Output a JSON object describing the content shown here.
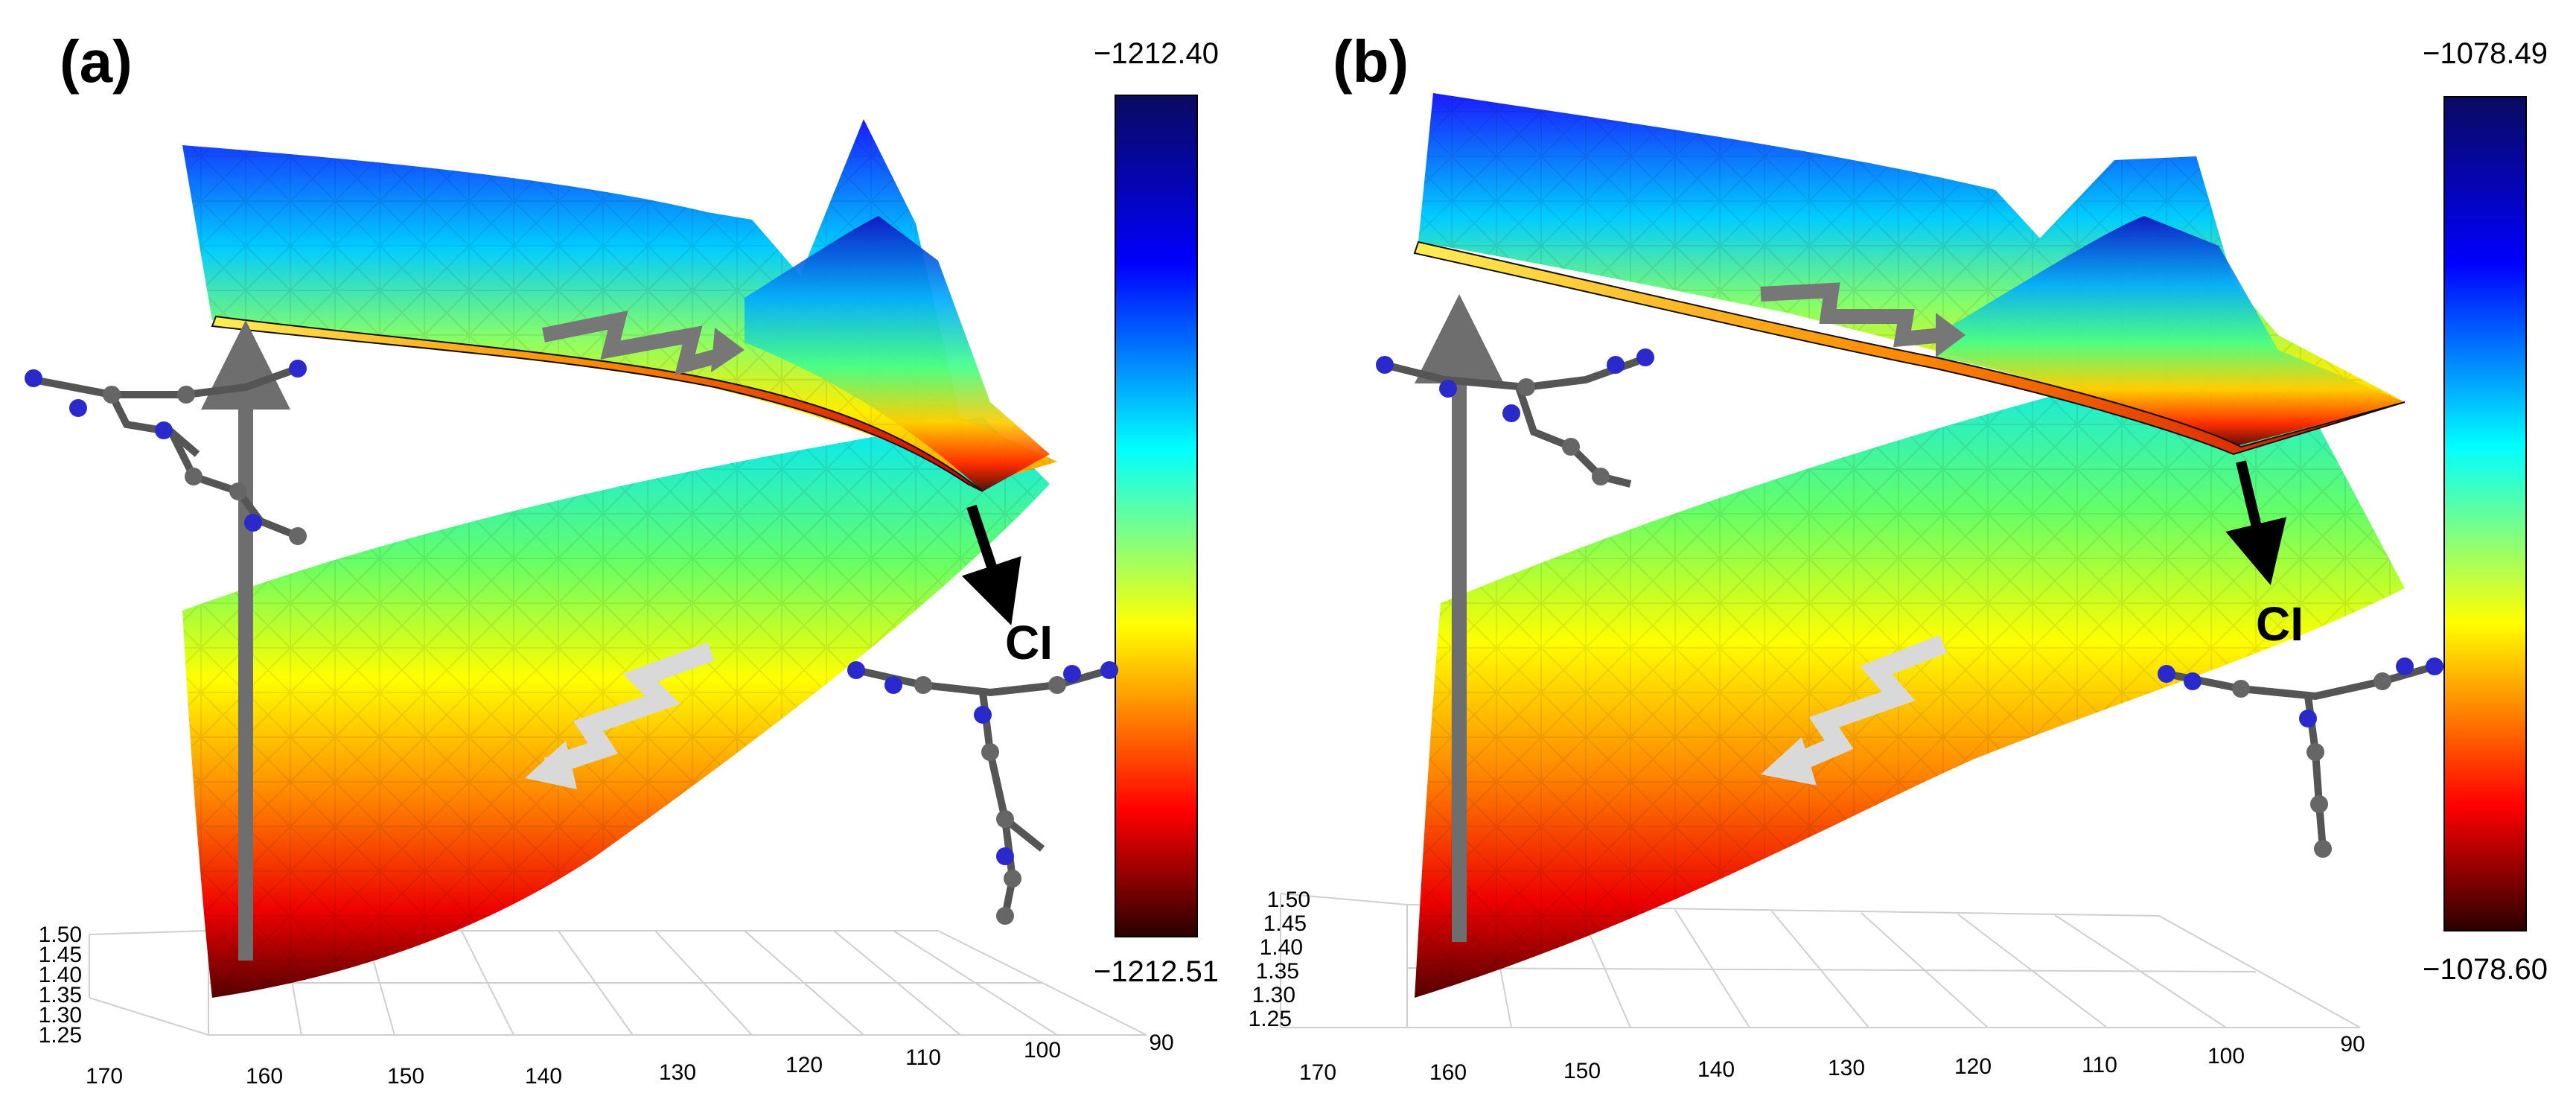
{
  "panels": [
    {
      "label": "(a)",
      "colorbar": {
        "max": "−1212.40",
        "min": "−1212.51"
      },
      "ci_label": "CI",
      "axis_x_ticks": [
        "170",
        "160",
        "150",
        "140",
        "130",
        "120",
        "110",
        "100",
        "90"
      ],
      "axis_z_ticks": [
        "1.50",
        "1.45",
        "1.40",
        "1.35",
        "1.30",
        "1.25"
      ]
    },
    {
      "label": "(b)",
      "colorbar": {
        "max": "−1078.49",
        "min": "−1078.60"
      },
      "ci_label": "CI",
      "axis_x_ticks": [
        "170",
        "160",
        "150",
        "140",
        "130",
        "120",
        "110",
        "100",
        "90"
      ],
      "axis_z_ticks": [
        "1.50",
        "1.45",
        "1.40",
        "1.35",
        "1.30",
        "1.25"
      ]
    }
  ],
  "colors": {
    "colorbar_stops": [
      "#0a0a60",
      "#0000ff",
      "#00ffff",
      "#ffff00",
      "#ff0000",
      "#2a0000"
    ],
    "arrow_dark": "#6e6e6e",
    "arrow_light": "#d9d9d9"
  }
}
